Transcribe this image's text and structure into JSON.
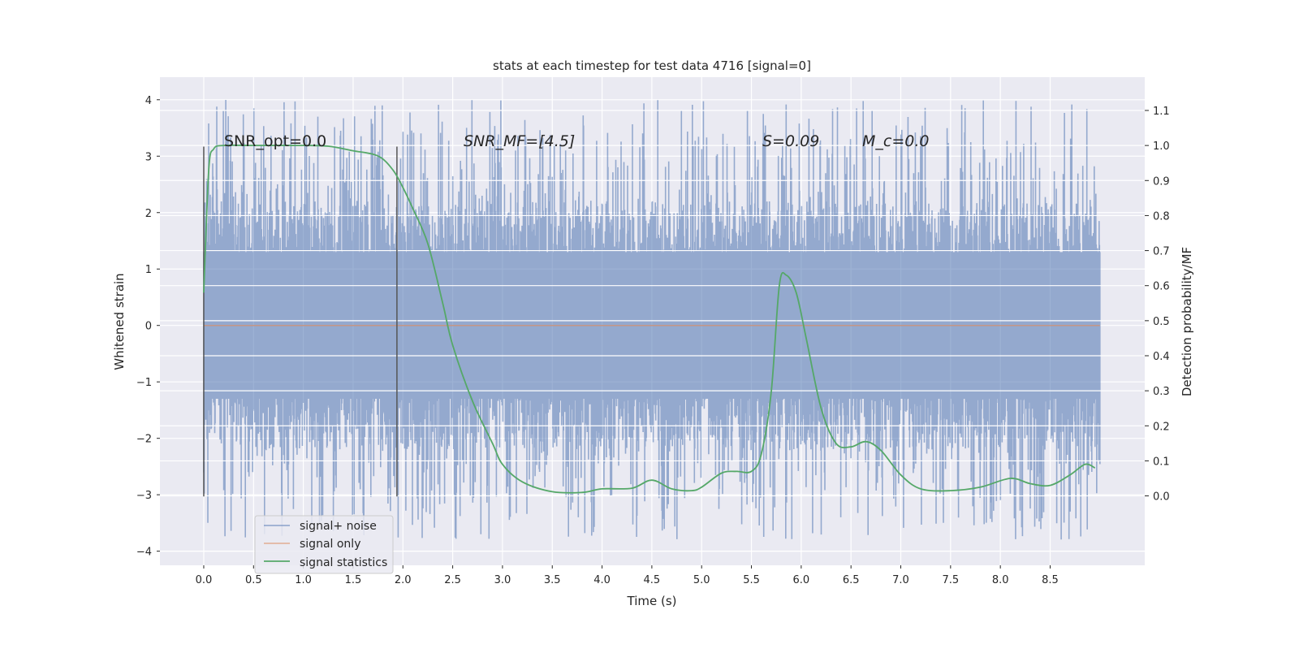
{
  "chart_data": {
    "type": "line",
    "title": "stats at each timestep for test data 4716 [signal=0]",
    "xlabel": "Time (s)",
    "ylabel": "Whitened strain",
    "ylabel_right": "Detection probability/MF",
    "xlim": [
      -0.44,
      9.45
    ],
    "ylim": [
      -4.25,
      4.4
    ],
    "ylim_right": [
      -0.198,
      1.195
    ],
    "xticks": [
      0.0,
      0.5,
      1.0,
      1.5,
      2.0,
      2.5,
      3.0,
      3.5,
      4.0,
      4.5,
      5.0,
      5.5,
      6.0,
      6.5,
      7.0,
      7.5,
      8.0,
      8.5
    ],
    "xtick_labels": [
      "0.0",
      "0.5",
      "1.0",
      "1.5",
      "2.0",
      "2.5",
      "3.0",
      "3.5",
      "4.0",
      "4.5",
      "5.0",
      "5.5",
      "6.0",
      "6.5",
      "7.0",
      "7.5",
      "8.0",
      "8.5"
    ],
    "yticks": [
      -4,
      -3,
      -2,
      -1,
      0,
      1,
      2,
      3,
      4
    ],
    "ytick_labels": [
      "−4",
      "−3",
      "−2",
      "−1",
      "0",
      "1",
      "2",
      "3",
      "4"
    ],
    "yticks_right": [
      0.0,
      0.1,
      0.2,
      0.3,
      0.4,
      0.5,
      0.6,
      0.7,
      0.8,
      0.9,
      1.0,
      1.1
    ],
    "ytick_labels_right": [
      "0.0",
      "0.1",
      "0.2",
      "0.3",
      "0.4",
      "0.5",
      "0.6",
      "0.7",
      "0.8",
      "0.9",
      "1.0",
      "1.1"
    ],
    "grid": true,
    "legend_position": "lower-left",
    "legend": [
      "signal+ noise",
      "signal only",
      "signal statistics"
    ],
    "series": [
      {
        "name": "signal+ noise",
        "color": "#4c72b0",
        "x_range": [
          0.0,
          9.0
        ],
        "typical_amplitude": 1.3,
        "max_amplitude": 4.0,
        "min_amplitude": -3.8
      },
      {
        "name": "signal only",
        "color": "#dd8452",
        "value": 0.0
      },
      {
        "name": "signal statistics",
        "color": "#55a868",
        "axis": "right",
        "x": [
          0,
          0.05,
          0.1,
          0.2,
          0.5,
          1.0,
          1.25,
          1.5,
          1.75,
          1.9,
          2.0,
          2.1,
          2.25,
          2.4,
          2.5,
          2.7,
          2.9,
          3.0,
          3.2,
          3.5,
          3.8,
          4.0,
          4.3,
          4.5,
          4.7,
          4.9,
          5.0,
          5.2,
          5.35,
          5.5,
          5.6,
          5.7,
          5.78,
          5.85,
          5.95,
          6.05,
          6.2,
          6.35,
          6.5,
          6.65,
          6.8,
          7.0,
          7.2,
          7.5,
          7.8,
          8.1,
          8.3,
          8.5,
          8.7,
          8.85,
          8.95
        ],
        "y": [
          0.58,
          0.93,
          0.99,
          1.0,
          1.0,
          1.0,
          0.998,
          0.985,
          0.97,
          0.93,
          0.88,
          0.82,
          0.72,
          0.55,
          0.43,
          0.27,
          0.15,
          0.09,
          0.04,
          0.012,
          0.01,
          0.02,
          0.022,
          0.045,
          0.02,
          0.015,
          0.025,
          0.065,
          0.07,
          0.07,
          0.12,
          0.3,
          0.6,
          0.63,
          0.58,
          0.45,
          0.25,
          0.15,
          0.14,
          0.155,
          0.13,
          0.06,
          0.02,
          0.015,
          0.025,
          0.05,
          0.035,
          0.03,
          0.06,
          0.09,
          0.08
        ]
      }
    ],
    "vertical_markers": [
      {
        "x": 0.0,
        "y": [
          -3.03,
          3.17
        ]
      },
      {
        "x": 1.94,
        "y": [
          -3.03,
          3.17
        ]
      }
    ],
    "annotations": [
      {
        "text": "SNR_opt=0.0",
        "x": 0.2,
        "y": 3.17
      },
      {
        "text": "SNR_MF=[4.5]",
        "x": 2.6,
        "y": 3.17
      },
      {
        "text": "S=0.09",
        "x": 5.6,
        "y": 3.17
      },
      {
        "text": "M_c=0.0",
        "x": 6.6,
        "y": 3.17
      }
    ]
  }
}
